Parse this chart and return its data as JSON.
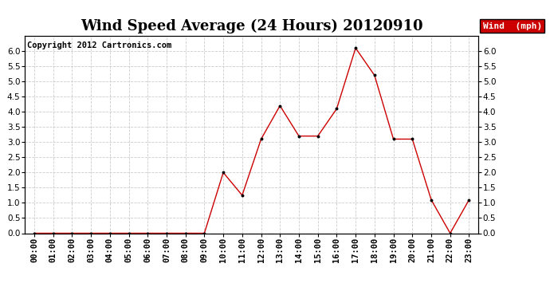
{
  "title": "Wind Speed Average (24 Hours) 20120910",
  "copyright_text": "Copyright 2012 Cartronics.com",
  "legend_label": "Wind  (mph)",
  "legend_bg": "#cc0000",
  "legend_text_color": "#ffffff",
  "x_labels": [
    "00:00",
    "01:00",
    "02:00",
    "03:00",
    "04:00",
    "05:00",
    "06:00",
    "07:00",
    "08:00",
    "09:00",
    "10:00",
    "11:00",
    "12:00",
    "13:00",
    "14:00",
    "15:00",
    "16:00",
    "17:00",
    "18:00",
    "19:00",
    "20:00",
    "21:00",
    "22:00",
    "23:00"
  ],
  "y_values": [
    0.0,
    0.0,
    0.0,
    0.0,
    0.0,
    0.0,
    0.0,
    0.0,
    0.0,
    0.0,
    2.0,
    1.25,
    3.1,
    4.2,
    3.2,
    3.2,
    4.1,
    6.1,
    5.2,
    3.1,
    3.1,
    1.1,
    0.0,
    1.1
  ],
  "line_color": "#cc0000",
  "marker_color": "#000000",
  "bg_color": "#ffffff",
  "grid_color": "#cccccc",
  "ylim": [
    0.0,
    6.5
  ],
  "yticks": [
    0.0,
    0.5,
    1.0,
    1.5,
    2.0,
    2.5,
    3.0,
    3.5,
    4.0,
    4.5,
    5.0,
    5.5,
    6.0
  ],
  "title_fontsize": 13,
  "tick_fontsize": 7.5,
  "copyright_fontsize": 7.5
}
